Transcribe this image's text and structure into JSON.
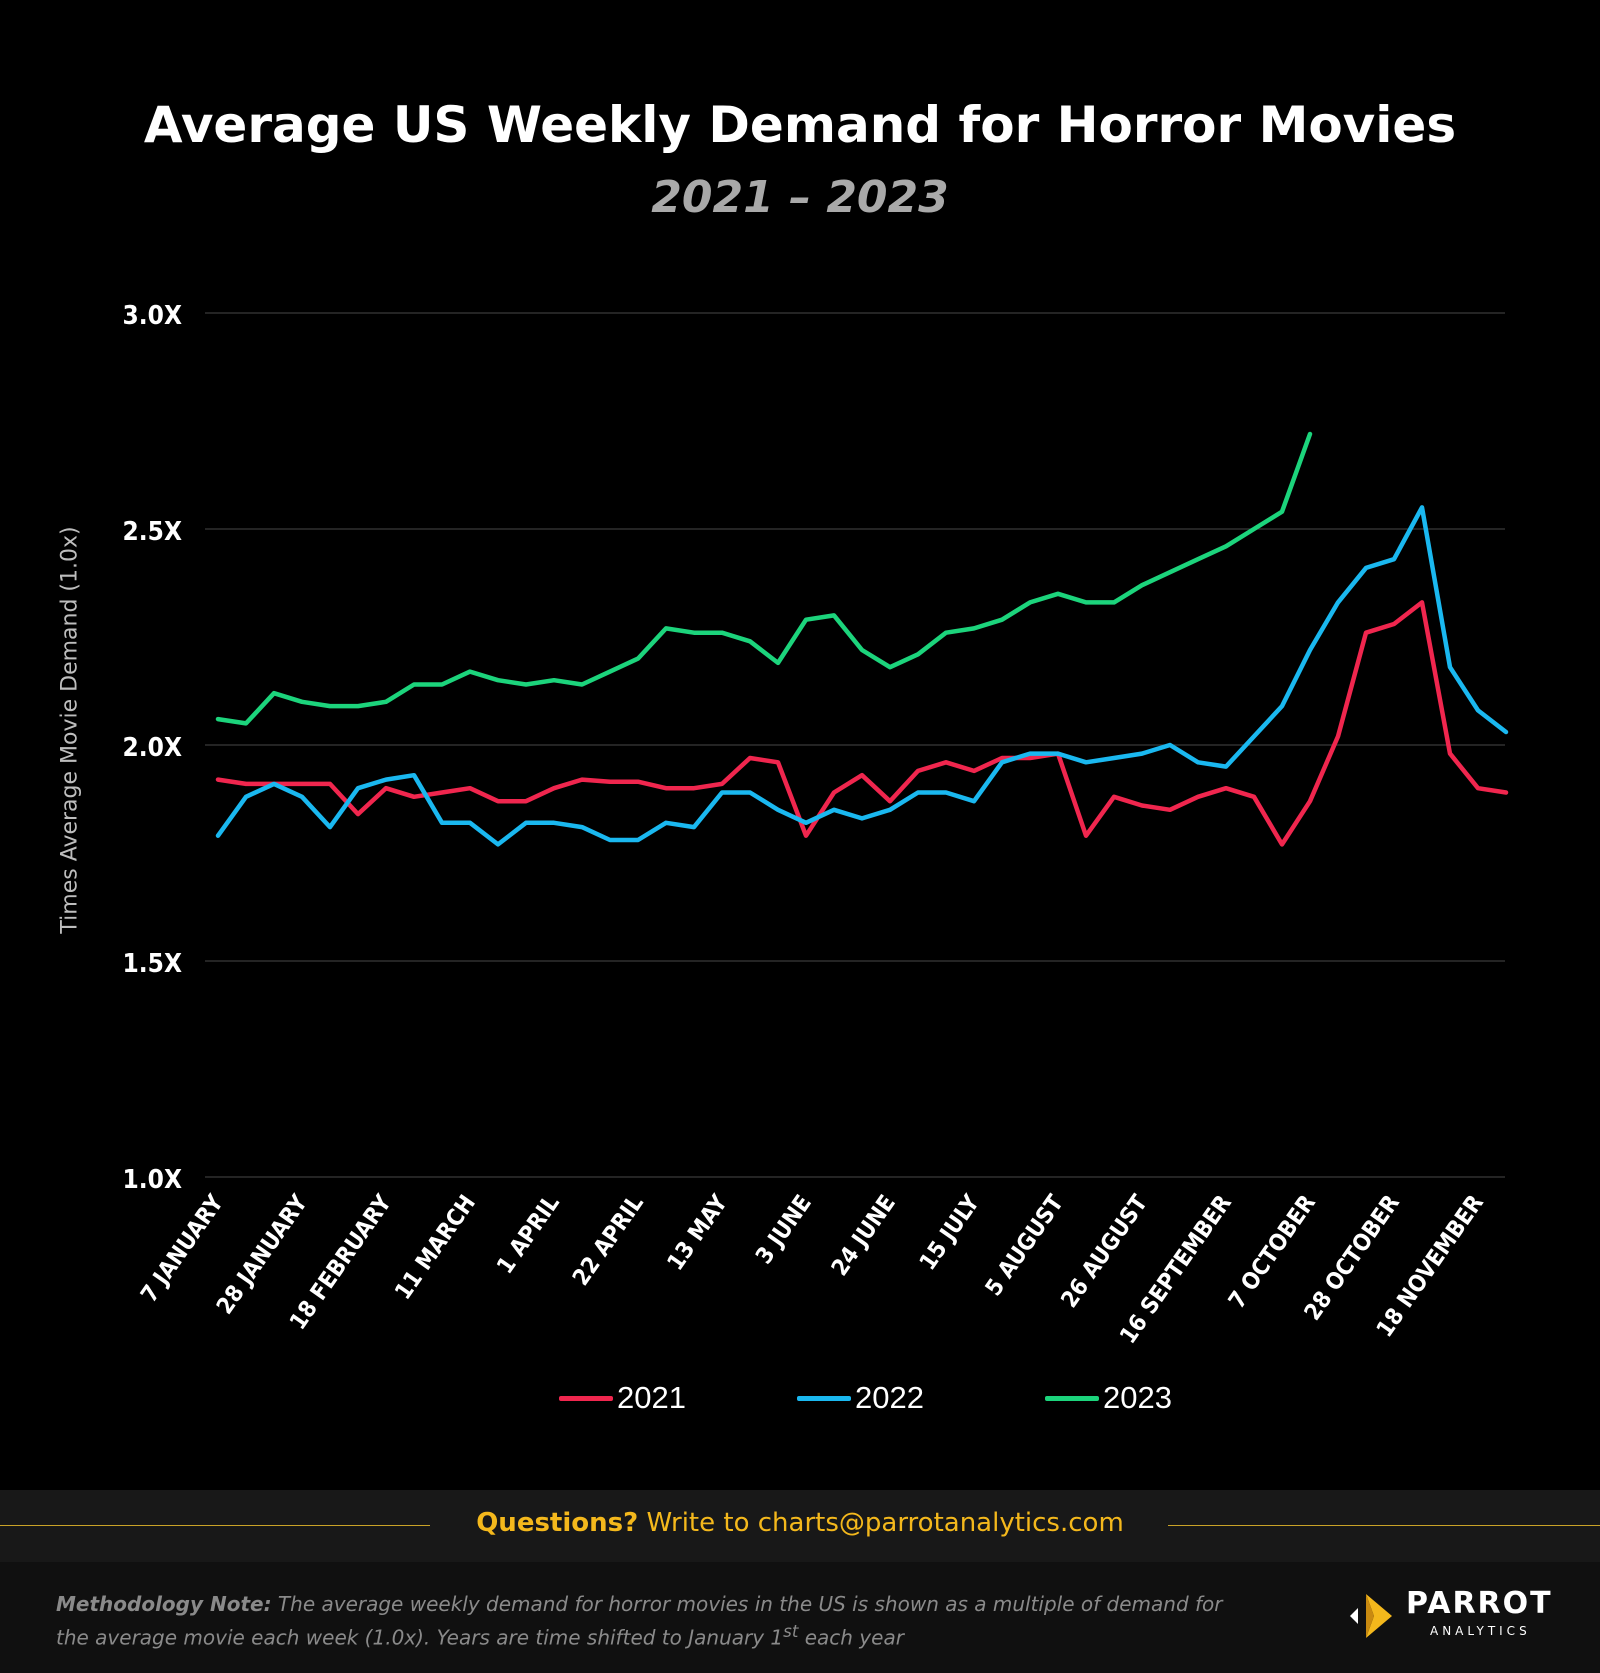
{
  "title": "Average US Weekly Demand for Horror Movies",
  "subtitle": "2021 – 2023",
  "footer": {
    "questions_bold": "Questions?",
    "questions_text": " Write to charts@parrotanalytics.com",
    "method_bold": "Methodology Note:",
    "method_text_1": " The average weekly demand for horror movies in the US is shown as a multiple of demand for the average movie each week (1.0x).  Years are time shifted to January 1",
    "method_sup": "st",
    "method_text_2": " each year",
    "logo_word": "PARROT",
    "logo_sub": "ANALYTICS"
  },
  "colors": {
    "2021": "#f0264e",
    "2022": "#1ab8f0",
    "2023": "#1cd47c",
    "grid": "#3a3a3a",
    "accent": "#f4b81c"
  },
  "chart_data": {
    "type": "line",
    "title": "Average US Weekly Demand for Horror Movies",
    "subtitle": "2021 – 2023",
    "ylabel": "Times Average Movie Demand (1.0x)",
    "xlabel": "",
    "ylim": [
      1.0,
      3.0
    ],
    "yticks": [
      1.0,
      1.5,
      2.0,
      2.5,
      3.0
    ],
    "ytick_labels": [
      "1.0X",
      "1.5X",
      "2.0X",
      "2.5X",
      "3.0X"
    ],
    "x_tick_labels": [
      "7 JANUARY",
      "28 JANUARY",
      "18 FEBRUARY",
      "11 MARCH",
      "1 APRIL",
      "22 APRIL",
      "13 MAY",
      "3 JUNE",
      "24 JUNE",
      "15 JULY",
      "5 AUGUST",
      "26 AUGUST",
      "16 SEPTEMBER",
      "7 OCTOBER",
      "28 OCTOBER",
      "18 NOVEMBER"
    ],
    "x_tick_every": 3,
    "grid": true,
    "legend": "bottom-center",
    "series": [
      {
        "name": "2021",
        "values": [
          1.92,
          1.91,
          1.91,
          1.91,
          1.91,
          1.84,
          1.9,
          1.88,
          1.89,
          1.9,
          1.87,
          1.87,
          1.9,
          1.92,
          1.915,
          1.915,
          1.9,
          1.9,
          1.91,
          1.97,
          1.96,
          1.79,
          1.89,
          1.93,
          1.87,
          1.94,
          1.96,
          1.94,
          1.97,
          1.97,
          1.98,
          1.79,
          1.88,
          1.86,
          1.85,
          1.88,
          1.9,
          1.88,
          1.77,
          1.87,
          2.02,
          2.26,
          2.28,
          2.33,
          1.98,
          1.9,
          1.89
        ]
      },
      {
        "name": "2022",
        "values": [
          1.79,
          1.88,
          1.91,
          1.88,
          1.81,
          1.9,
          1.92,
          1.93,
          1.82,
          1.82,
          1.77,
          1.82,
          1.82,
          1.81,
          1.78,
          1.78,
          1.82,
          1.81,
          1.89,
          1.89,
          1.85,
          1.82,
          1.85,
          1.83,
          1.85,
          1.89,
          1.89,
          1.87,
          1.96,
          1.98,
          1.98,
          1.96,
          1.97,
          1.98,
          2.0,
          1.96,
          1.95,
          2.02,
          2.09,
          2.22,
          2.33,
          2.41,
          2.43,
          2.55,
          2.18,
          2.08,
          2.03
        ]
      },
      {
        "name": "2023",
        "values": [
          2.06,
          2.05,
          2.12,
          2.1,
          2.09,
          2.09,
          2.1,
          2.14,
          2.14,
          2.17,
          2.15,
          2.14,
          2.15,
          2.14,
          2.17,
          2.2,
          2.27,
          2.26,
          2.26,
          2.24,
          2.19,
          2.29,
          2.3,
          2.22,
          2.18,
          2.21,
          2.26,
          2.27,
          2.29,
          2.33,
          2.35,
          2.33,
          2.33,
          2.37,
          2.4,
          2.43,
          2.46,
          2.5,
          2.54,
          2.72
        ]
      }
    ]
  }
}
